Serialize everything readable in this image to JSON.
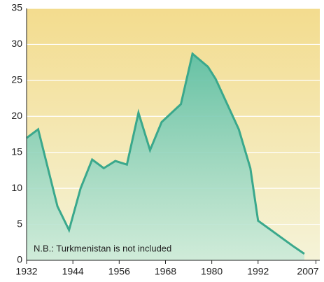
{
  "chart_data": {
    "type": "area",
    "annotation": "N.B.: Turkmenistan is not included",
    "x": [
      1932,
      1935,
      1940,
      1943,
      1946,
      1949,
      1952,
      1955,
      1958,
      1961,
      1964,
      1967,
      1972,
      1975,
      1979,
      1981,
      1987,
      1990,
      1992,
      2001,
      2004
    ],
    "series": [
      {
        "name": "",
        "color": "#3aa88c",
        "values": [
          17,
          18.2,
          7.5,
          4.2,
          10,
          14,
          12.8,
          13.8,
          13.3,
          20.5,
          15.3,
          19.2,
          21.7,
          28.7,
          26.9,
          25.2,
          18.2,
          12.8,
          5.5,
          2,
          0.9
        ]
      }
    ],
    "xlim": [
      1932,
      2008
    ],
    "xticks": [
      1932,
      1944,
      1956,
      1968,
      1980,
      1992,
      2007
    ],
    "ylim": [
      0,
      35
    ],
    "yticks": [
      0,
      5,
      10,
      15,
      20,
      25,
      30,
      35
    ],
    "grid": true
  }
}
